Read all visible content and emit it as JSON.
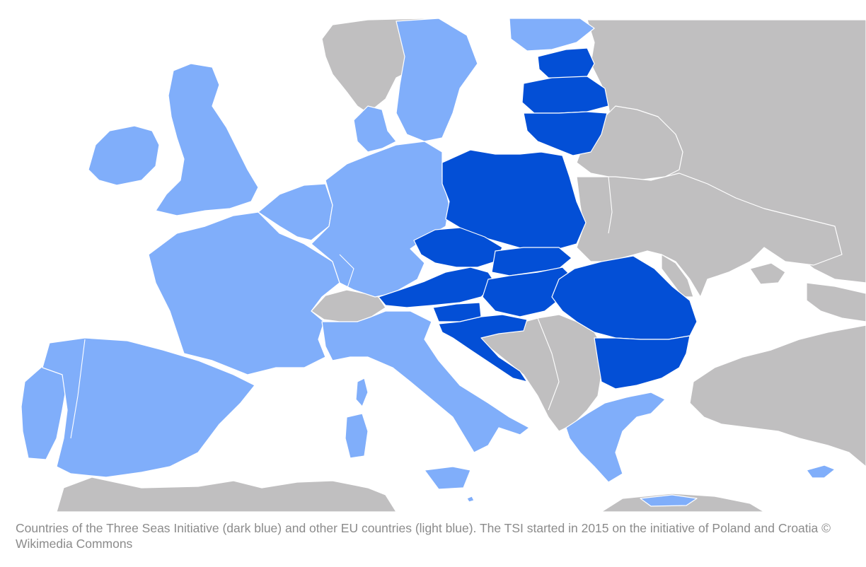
{
  "figure": {
    "caption": "Countries of the Three Seas Initiative (dark blue) and other EU countries (light blue). The TSI started in 2015 on the initiative of Poland and Croatia © Wikimedia Commons"
  },
  "legend_colors": {
    "three_seas_initiative": "#034fd6",
    "other_eu": "#80aefa",
    "non_eu": "#c0bfc0",
    "sea": "#ffffff"
  },
  "map": {
    "region": "Europe",
    "three_seas_countries": [
      "Estonia",
      "Latvia",
      "Lithuania",
      "Poland",
      "Czechia",
      "Slovakia",
      "Austria",
      "Hungary",
      "Slovenia",
      "Croatia",
      "Romania",
      "Bulgaria"
    ],
    "other_eu_countries": [
      "Ireland",
      "Portugal",
      "Spain",
      "France",
      "Belgium",
      "Netherlands",
      "Luxembourg",
      "Germany",
      "Denmark",
      "Sweden",
      "Finland",
      "Italy",
      "Greece",
      "Cyprus",
      "Malta"
    ],
    "non_eu_countries": [
      "United Kingdom",
      "Norway",
      "Switzerland",
      "Belarus",
      "Ukraine",
      "Moldova",
      "Russia",
      "Serbia",
      "Bosnia and Herzegovina",
      "Montenegro",
      "Albania",
      "North Macedonia",
      "Kosovo",
      "Turkey",
      "Morocco",
      "Algeria",
      "Tunisia",
      "Libya"
    ]
  }
}
